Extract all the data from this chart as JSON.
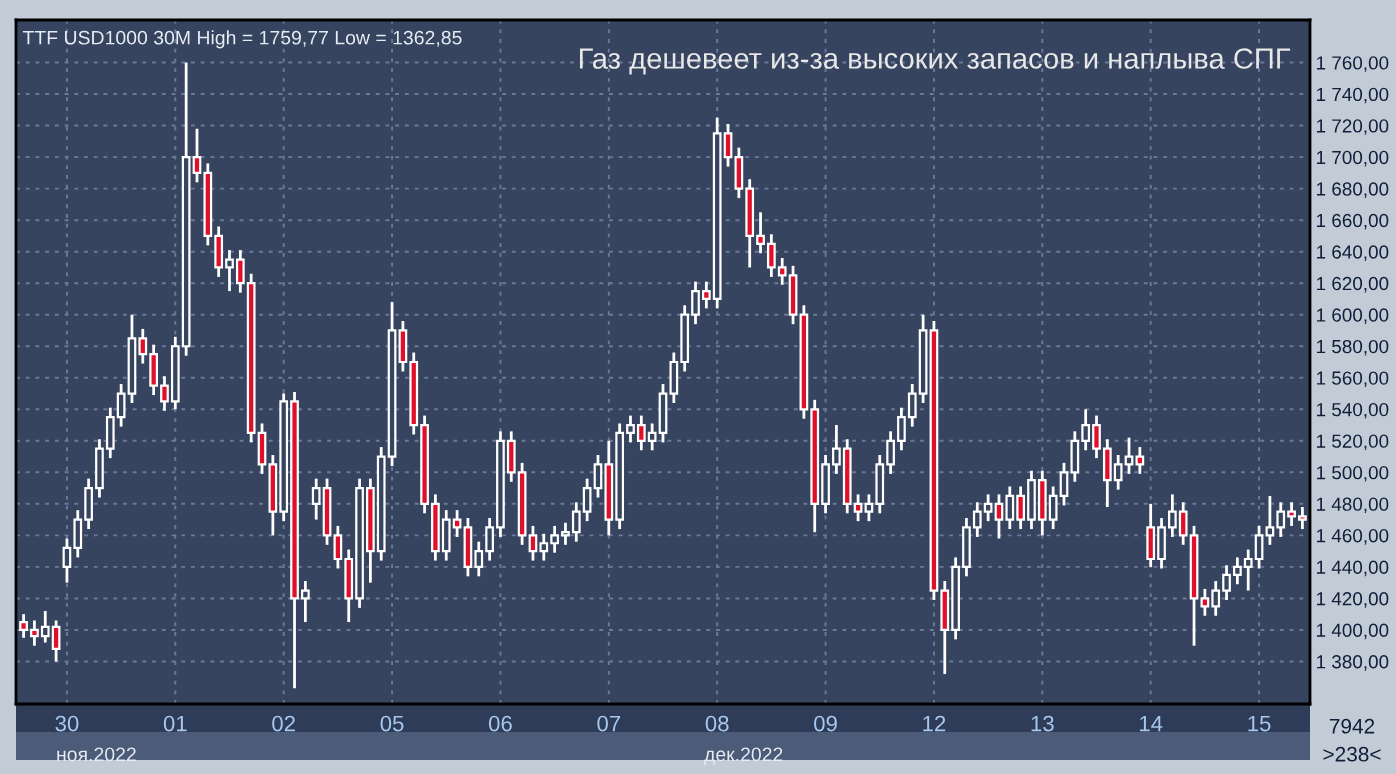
{
  "chart_data": {
    "type": "candlestick",
    "title": "Газ дешевеет из-за высоких запасов и наплыва СПГ",
    "annotations": [
      "TTF USD1000 30M High = 1759,77 Low = 1362,85",
      "ноя.2022",
      "дек.2022",
      "7942",
      ">238<"
    ],
    "ohlc": [
      [
        1405,
        1410,
        1395,
        1400
      ],
      [
        1400,
        1406,
        1390,
        1396
      ],
      [
        1396,
        1412,
        1392,
        1402
      ],
      [
        1402,
        1406,
        1380,
        1388
      ],
      [
        1440,
        1458,
        1430,
        1452
      ],
      [
        1452,
        1476,
        1446,
        1470
      ],
      [
        1470,
        1496,
        1464,
        1490
      ],
      [
        1490,
        1521,
        1484,
        1515
      ],
      [
        1515,
        1541,
        1509,
        1535
      ],
      [
        1535,
        1556,
        1529,
        1550
      ],
      [
        1550,
        1600,
        1544,
        1585
      ],
      [
        1585,
        1591,
        1569,
        1575
      ],
      [
        1575,
        1581,
        1549,
        1555
      ],
      [
        1555,
        1561,
        1539,
        1545
      ],
      [
        1545,
        1586,
        1540,
        1580
      ],
      [
        1580,
        1760,
        1574,
        1700
      ],
      [
        1700,
        1718,
        1684,
        1690
      ],
      [
        1690,
        1696,
        1644,
        1650
      ],
      [
        1650,
        1656,
        1624,
        1630
      ],
      [
        1630,
        1641,
        1615,
        1635
      ],
      [
        1635,
        1641,
        1614,
        1620
      ],
      [
        1620,
        1626,
        1519,
        1525
      ],
      [
        1525,
        1531,
        1499,
        1505
      ],
      [
        1505,
        1511,
        1460,
        1475
      ],
      [
        1475,
        1550,
        1469,
        1545
      ],
      [
        1545,
        1551,
        1363,
        1420
      ],
      [
        1420,
        1431,
        1405,
        1425
      ],
      [
        1480,
        1496,
        1470,
        1490
      ],
      [
        1490,
        1496,
        1454,
        1460
      ],
      [
        1460,
        1466,
        1439,
        1445
      ],
      [
        1445,
        1451,
        1405,
        1420
      ],
      [
        1420,
        1496,
        1414,
        1490
      ],
      [
        1490,
        1496,
        1430,
        1450
      ],
      [
        1450,
        1516,
        1444,
        1510
      ],
      [
        1510,
        1608,
        1504,
        1590
      ],
      [
        1590,
        1596,
        1564,
        1570
      ],
      [
        1570,
        1576,
        1524,
        1530
      ],
      [
        1530,
        1536,
        1474,
        1480
      ],
      [
        1480,
        1486,
        1444,
        1450
      ],
      [
        1450,
        1476,
        1444,
        1470
      ],
      [
        1470,
        1476,
        1459,
        1465
      ],
      [
        1465,
        1471,
        1434,
        1440
      ],
      [
        1440,
        1456,
        1434,
        1450
      ],
      [
        1450,
        1471,
        1444,
        1465
      ],
      [
        1465,
        1526,
        1459,
        1520
      ],
      [
        1520,
        1526,
        1494,
        1500
      ],
      [
        1500,
        1506,
        1454,
        1460
      ],
      [
        1460,
        1466,
        1444,
        1450
      ],
      [
        1450,
        1461,
        1444,
        1455
      ],
      [
        1455,
        1466,
        1449,
        1460
      ],
      [
        1460,
        1468,
        1454,
        1462
      ],
      [
        1462,
        1481,
        1456,
        1475
      ],
      [
        1475,
        1496,
        1469,
        1490
      ],
      [
        1490,
        1511,
        1484,
        1505
      ],
      [
        1505,
        1520,
        1460,
        1470
      ],
      [
        1470,
        1531,
        1464,
        1525
      ],
      [
        1525,
        1536,
        1519,
        1530
      ],
      [
        1530,
        1536,
        1514,
        1520
      ],
      [
        1520,
        1531,
        1514,
        1525
      ],
      [
        1525,
        1556,
        1519,
        1550
      ],
      [
        1550,
        1576,
        1544,
        1570
      ],
      [
        1570,
        1606,
        1564,
        1600
      ],
      [
        1600,
        1621,
        1594,
        1615
      ],
      [
        1615,
        1621,
        1604,
        1610
      ],
      [
        1610,
        1725,
        1604,
        1715
      ],
      [
        1715,
        1721,
        1694,
        1700
      ],
      [
        1700,
        1706,
        1674,
        1680
      ],
      [
        1680,
        1686,
        1630,
        1650
      ],
      [
        1650,
        1665,
        1639,
        1645
      ],
      [
        1645,
        1651,
        1624,
        1630
      ],
      [
        1630,
        1636,
        1619,
        1625
      ],
      [
        1625,
        1631,
        1594,
        1600
      ],
      [
        1600,
        1606,
        1534,
        1540
      ],
      [
        1540,
        1546,
        1462,
        1480
      ],
      [
        1480,
        1511,
        1474,
        1505
      ],
      [
        1505,
        1530,
        1499,
        1515
      ],
      [
        1515,
        1521,
        1474,
        1480
      ],
      [
        1480,
        1486,
        1469,
        1475
      ],
      [
        1475,
        1486,
        1469,
        1480
      ],
      [
        1480,
        1511,
        1474,
        1505
      ],
      [
        1505,
        1526,
        1499,
        1520
      ],
      [
        1520,
        1541,
        1514,
        1535
      ],
      [
        1535,
        1556,
        1529,
        1550
      ],
      [
        1550,
        1600,
        1544,
        1590
      ],
      [
        1590,
        1596,
        1419,
        1425
      ],
      [
        1425,
        1431,
        1372,
        1400
      ],
      [
        1400,
        1446,
        1394,
        1440
      ],
      [
        1440,
        1471,
        1434,
        1465
      ],
      [
        1465,
        1481,
        1459,
        1475
      ],
      [
        1475,
        1486,
        1469,
        1480
      ],
      [
        1480,
        1486,
        1458,
        1470
      ],
      [
        1470,
        1491,
        1464,
        1485
      ],
      [
        1485,
        1491,
        1464,
        1470
      ],
      [
        1470,
        1501,
        1464,
        1495
      ],
      [
        1495,
        1501,
        1460,
        1470
      ],
      [
        1470,
        1491,
        1464,
        1485
      ],
      [
        1485,
        1506,
        1479,
        1500
      ],
      [
        1500,
        1526,
        1494,
        1520
      ],
      [
        1520,
        1540,
        1514,
        1530
      ],
      [
        1530,
        1536,
        1509,
        1515
      ],
      [
        1515,
        1521,
        1478,
        1495
      ],
      [
        1495,
        1511,
        1489,
        1505
      ],
      [
        1505,
        1522,
        1499,
        1510
      ],
      [
        1510,
        1516,
        1499,
        1505
      ],
      [
        1465,
        1480,
        1440,
        1445
      ],
      [
        1445,
        1471,
        1439,
        1465
      ],
      [
        1465,
        1486,
        1459,
        1475
      ],
      [
        1475,
        1481,
        1454,
        1460
      ],
      [
        1460,
        1466,
        1390,
        1420
      ],
      [
        1420,
        1426,
        1409,
        1415
      ],
      [
        1415,
        1431,
        1409,
        1425
      ],
      [
        1425,
        1441,
        1419,
        1435
      ],
      [
        1435,
        1446,
        1429,
        1440
      ],
      [
        1440,
        1451,
        1425,
        1445
      ],
      [
        1445,
        1466,
        1439,
        1460
      ],
      [
        1460,
        1485,
        1454,
        1465
      ],
      [
        1465,
        1481,
        1459,
        1475
      ],
      [
        1475,
        1481,
        1466,
        1472
      ],
      [
        1472,
        1478,
        1464,
        1470
      ]
    ],
    "categories": [
      null,
      null,
      null,
      null,
      "30",
      null,
      null,
      null,
      null,
      null,
      null,
      null,
      null,
      null,
      "01",
      null,
      null,
      null,
      null,
      null,
      null,
      null,
      null,
      null,
      "02",
      null,
      null,
      null,
      null,
      null,
      null,
      null,
      null,
      null,
      "05",
      null,
      null,
      null,
      null,
      null,
      null,
      null,
      null,
      null,
      "06",
      null,
      null,
      null,
      null,
      null,
      null,
      null,
      null,
      null,
      "07",
      null,
      null,
      null,
      null,
      null,
      null,
      null,
      null,
      null,
      "08",
      null,
      null,
      null,
      null,
      null,
      null,
      null,
      null,
      null,
      "09",
      null,
      null,
      null,
      null,
      null,
      null,
      null,
      null,
      null,
      "12",
      null,
      null,
      null,
      null,
      null,
      null,
      null,
      null,
      null,
      "13",
      null,
      null,
      null,
      null,
      null,
      null,
      null,
      null,
      null,
      "14",
      null,
      null,
      null,
      null,
      null,
      null,
      null,
      null,
      null,
      "15",
      null,
      null,
      null,
      null
    ],
    "ylim": [
      1353,
      1787
    ],
    "yticks": [
      {
        "value": 1380,
        "label": "1 380,00"
      },
      {
        "value": 1400,
        "label": "1 400,00"
      },
      {
        "value": 1420,
        "label": "1 420,00"
      },
      {
        "value": 1440,
        "label": "1 440,00"
      },
      {
        "value": 1460,
        "label": "1 460,00"
      },
      {
        "value": 1480,
        "label": "1 480,00"
      },
      {
        "value": 1500,
        "label": "1 500,00"
      },
      {
        "value": 1520,
        "label": "1 520,00"
      },
      {
        "value": 1540,
        "label": "1 540,00"
      },
      {
        "value": 1560,
        "label": "1 560,00"
      },
      {
        "value": 1580,
        "label": "1 580,00"
      },
      {
        "value": 1600,
        "label": "1 600,00"
      },
      {
        "value": 1620,
        "label": "1 620,00"
      },
      {
        "value": 1640,
        "label": "1 640,00"
      },
      {
        "value": 1660,
        "label": "1 660,00"
      },
      {
        "value": 1680,
        "label": "1 680,00"
      },
      {
        "value": 1700,
        "label": "1 700,00"
      },
      {
        "value": 1720,
        "label": "1 720,00"
      },
      {
        "value": 1740,
        "label": "1 740,00"
      },
      {
        "value": 1760,
        "label": "1 760,00"
      }
    ],
    "grid": true
  }
}
